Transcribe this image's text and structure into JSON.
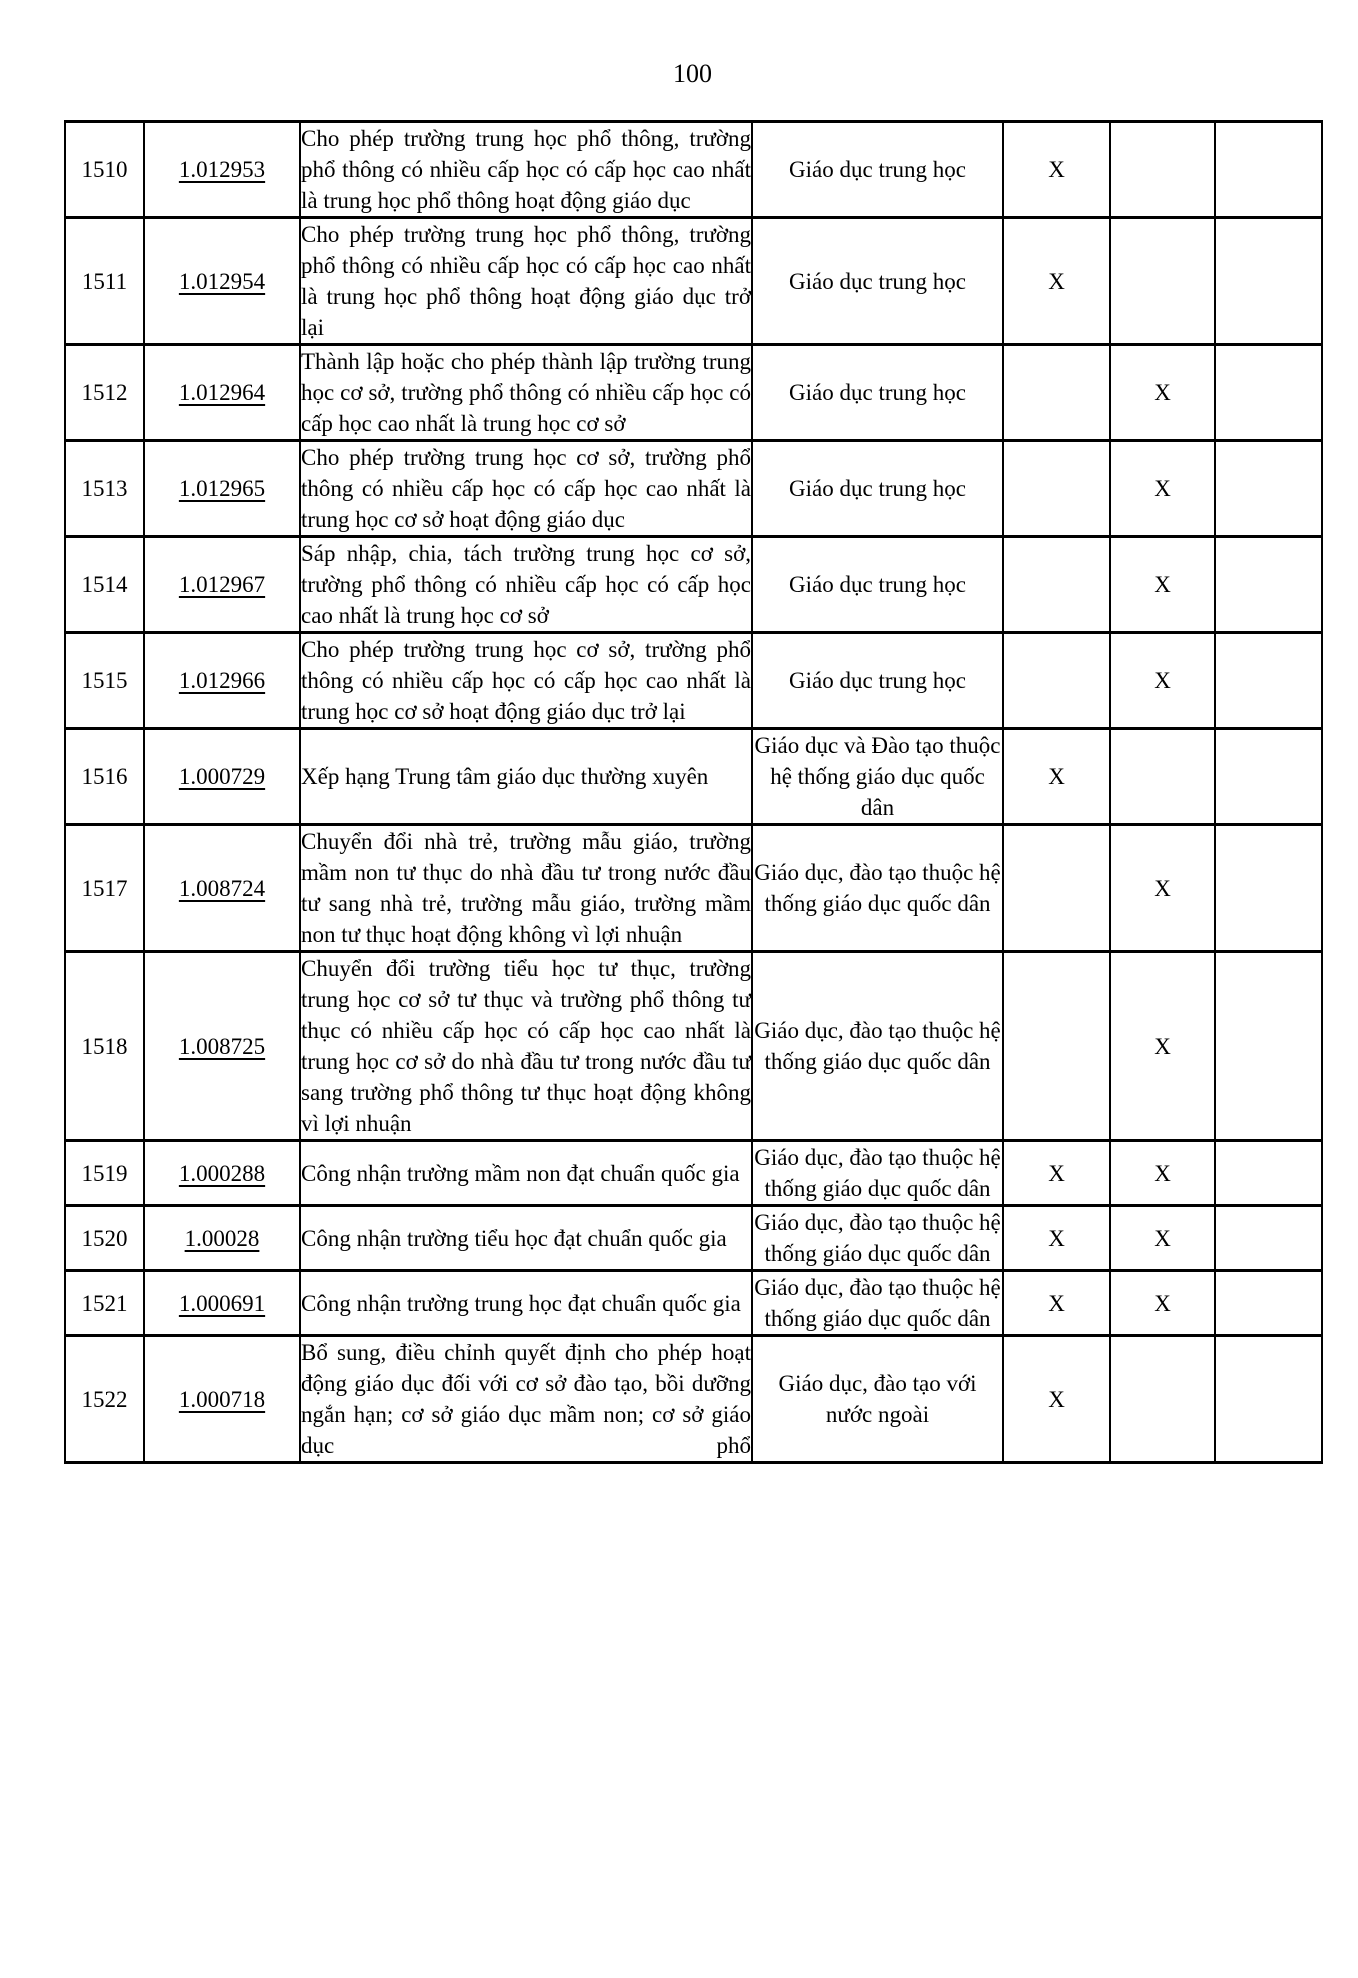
{
  "page": {
    "number": "100"
  },
  "colors": {
    "background": "#ffffff",
    "text": "#000000",
    "border": "#000000"
  },
  "table": {
    "mark_symbol": "X",
    "rows": [
      {
        "stt": "1510",
        "code": "1.012953",
        "description": "Cho phép trường trung học phổ thông, trường phổ thông có nhiều cấp học có cấp học cao nhất là trung học phổ thông hoạt động giáo dục",
        "field": "Giáo dục trung học",
        "x1": "X",
        "x2": "",
        "x7": ""
      },
      {
        "stt": "1511",
        "code": "1.012954",
        "description": "Cho phép trường trung học phổ thông, trường phổ thông có nhiều cấp học có cấp học cao nhất là trung học phổ thông hoạt động giáo dục trở lại",
        "field": "Giáo dục trung học",
        "x1": "X",
        "x2": "",
        "x7": ""
      },
      {
        "stt": "1512",
        "code": "1.012964",
        "description": "Thành lập hoặc cho phép thành lập trường trung học cơ sở, trường phổ thông có nhiều cấp học có cấp học cao nhất là trung học cơ sở",
        "field": "Giáo dục trung học",
        "x1": "",
        "x2": "X",
        "x7": ""
      },
      {
        "stt": "1513",
        "code": "1.012965",
        "description": "Cho phép trường trung học cơ sở, trường phổ thông có nhiều cấp học có cấp học cao nhất là trung học cơ sở hoạt động giáo dục",
        "field": "Giáo dục trung học",
        "x1": "",
        "x2": "X",
        "x7": ""
      },
      {
        "stt": "1514",
        "code": "1.012967",
        "description": "Sáp nhập, chia, tách trường trung học cơ sở, trường phổ thông có nhiều cấp học có cấp học cao nhất là trung học cơ sở",
        "field": "Giáo dục trung học",
        "x1": "",
        "x2": "X",
        "x7": ""
      },
      {
        "stt": "1515",
        "code": "1.012966",
        "description": "Cho phép trường trung học cơ sở, trường phổ thông có nhiều cấp học có cấp học cao nhất là trung học cơ sở hoạt động giáo dục trở lại",
        "field": "Giáo dục trung học",
        "x1": "",
        "x2": "X",
        "x7": ""
      },
      {
        "stt": "1516",
        "code": "1.000729",
        "description": "Xếp hạng Trung tâm giáo dục thường xuyên",
        "field": "Giáo dục và Đào tạo thuộc hệ thống giáo dục quốc dân",
        "x1": "X",
        "x2": "",
        "x7": ""
      },
      {
        "stt": "1517",
        "code": "1.008724",
        "description": "Chuyển đổi nhà trẻ, trường mẫu giáo, trường mầm non tư thục do nhà đầu tư trong nước đầu tư sang nhà trẻ, trường mẫu giáo, trường mầm non tư thục hoạt động không vì lợi nhuận",
        "field": "Giáo dục, đào tạo thuộc hệ thống giáo dục quốc dân",
        "x1": "",
        "x2": "X",
        "x7": ""
      },
      {
        "stt": "1518",
        "code": "1.008725",
        "description": "Chuyển đổi trường tiểu học tư thục, trường trung học cơ sở tư thục và trường phổ thông tư thục có nhiều cấp học có cấp học cao nhất là trung học cơ sở do nhà đầu tư trong nước đầu tư sang trường phổ thông tư thục hoạt động không vì lợi nhuận",
        "field": "Giáo dục, đào tạo thuộc hệ thống giáo dục quốc dân",
        "x1": "",
        "x2": "X",
        "x7": ""
      },
      {
        "stt": "1519",
        "code": "1.000288",
        "description": "Công nhận trường mầm non đạt chuẩn quốc gia",
        "field": "Giáo dục, đào tạo thuộc hệ thống giáo dục quốc dân",
        "x1": "X",
        "x2": "X",
        "x7": ""
      },
      {
        "stt": "1520",
        "code": "1.00028",
        "description": "Công nhận trường tiểu học đạt chuẩn quốc gia",
        "field": "Giáo dục, đào tạo thuộc hệ thống giáo dục quốc dân",
        "x1": "X",
        "x2": "X",
        "x7": ""
      },
      {
        "stt": "1521",
        "code": "1.000691",
        "description": "Công nhận trường trung học đạt chuẩn quốc gia",
        "field": "Giáo dục, đào tạo thuộc hệ thống giáo dục quốc dân",
        "x1": "X",
        "x2": "X",
        "x7": ""
      },
      {
        "stt": "1522",
        "code": "1.000718",
        "description": "Bổ sung, điều chỉnh quyết định cho phép hoạt động giáo dục đối với cơ sở đào tạo, bồi dưỡng ngắn hạn; cơ sở giáo dục mầm non; cơ sở giáo dục phổ",
        "field": "Giáo dục, đào tạo với nước ngoài",
        "x1": "X",
        "x2": "",
        "x7": "",
        "justify_last_line": true
      }
    ]
  }
}
